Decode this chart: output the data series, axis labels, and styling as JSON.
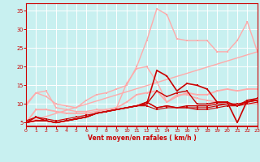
{
  "bg_color": "#c8f0f0",
  "grid_color": "#ffffff",
  "xlabel": "Vent moyen/en rafales ( km/h )",
  "xlim": [
    0,
    23
  ],
  "ylim": [
    4,
    37
  ],
  "yticks": [
    5,
    10,
    15,
    20,
    25,
    30,
    35
  ],
  "xticks": [
    0,
    1,
    2,
    3,
    4,
    5,
    6,
    7,
    8,
    9,
    10,
    11,
    12,
    13,
    14,
    15,
    16,
    17,
    18,
    19,
    20,
    21,
    22,
    23
  ],
  "series": [
    {
      "x": [
        0,
        1,
        2,
        3,
        4,
        5,
        6,
        7,
        8,
        9,
        10,
        11,
        12,
        13,
        14,
        15,
        16,
        17,
        18,
        19,
        20,
        21,
        22,
        23
      ],
      "y": [
        10.0,
        13.0,
        12.0,
        10.0,
        9.5,
        9.0,
        11.0,
        12.5,
        13.0,
        14.0,
        15.0,
        20.0,
        27.0,
        35.5,
        34.0,
        27.5,
        27.0,
        27.0,
        27.0,
        24.0,
        24.0,
        27.0,
        32.0,
        24.0
      ],
      "color": "#ffaaaa",
      "lw": 1.0,
      "ms": 2.0
    },
    {
      "x": [
        0,
        1,
        2,
        3,
        4,
        5,
        6,
        7,
        8,
        9,
        10,
        11,
        12,
        13,
        14,
        15,
        16,
        17,
        18,
        19,
        20,
        21,
        22,
        23
      ],
      "y": [
        9.5,
        13.0,
        13.5,
        9.0,
        8.5,
        8.0,
        8.0,
        8.5,
        8.5,
        9.0,
        15.5,
        19.5,
        20.0,
        16.0,
        10.5,
        12.5,
        12.5,
        11.5,
        11.0,
        10.5,
        10.5,
        9.5,
        10.0,
        10.0
      ],
      "color": "#ffaaaa",
      "lw": 1.0,
      "ms": 2.0
    },
    {
      "x": [
        0,
        1,
        2,
        3,
        4,
        5,
        6,
        7,
        8,
        9,
        10,
        11,
        12,
        13,
        14,
        15,
        16,
        17,
        18,
        19,
        20,
        21,
        22,
        23
      ],
      "y": [
        5.0,
        8.5,
        8.5,
        8.0,
        7.5,
        7.5,
        7.5,
        8.0,
        8.5,
        9.0,
        10.5,
        12.5,
        13.0,
        13.5,
        10.5,
        12.0,
        13.0,
        12.5,
        12.5,
        13.5,
        14.0,
        13.5,
        14.0,
        14.0
      ],
      "color": "#ffaaaa",
      "lw": 1.3,
      "ms": 2.0
    },
    {
      "x": [
        0,
        23
      ],
      "y": [
        5.0,
        24.0
      ],
      "color": "#ffaaaa",
      "lw": 1.0,
      "ms": 0
    },
    {
      "x": [
        0,
        1,
        2,
        3,
        4,
        5,
        6,
        7,
        8,
        9,
        10,
        11,
        12,
        13,
        14,
        15,
        16,
        17,
        18,
        19,
        20,
        21,
        22,
        23
      ],
      "y": [
        5.0,
        6.5,
        5.5,
        5.0,
        5.5,
        6.0,
        6.5,
        7.5,
        8.0,
        8.5,
        9.0,
        9.5,
        10.0,
        19.0,
        17.5,
        13.5,
        15.5,
        15.0,
        14.0,
        10.5,
        10.5,
        5.0,
        11.0,
        11.0
      ],
      "color": "#cc0000",
      "lw": 1.2,
      "ms": 2.0
    },
    {
      "x": [
        0,
        1,
        2,
        3,
        4,
        5,
        6,
        7,
        8,
        9,
        10,
        11,
        12,
        13,
        14,
        15,
        16,
        17,
        18,
        19,
        20,
        21,
        22,
        23
      ],
      "y": [
        5.0,
        5.5,
        5.5,
        5.0,
        5.5,
        6.0,
        6.5,
        7.5,
        8.0,
        8.5,
        9.0,
        9.5,
        10.0,
        13.5,
        12.0,
        13.0,
        13.5,
        10.0,
        10.0,
        10.5,
        10.5,
        9.5,
        11.0,
        11.5
      ],
      "color": "#cc0000",
      "lw": 1.0,
      "ms": 2.0
    },
    {
      "x": [
        0,
        1,
        2,
        3,
        4,
        5,
        6,
        7,
        8,
        9,
        10,
        11,
        12,
        13,
        14,
        15,
        16,
        17,
        18,
        19,
        20,
        21,
        22,
        23
      ],
      "y": [
        5.0,
        5.5,
        5.5,
        5.0,
        5.5,
        6.0,
        6.5,
        7.5,
        8.0,
        8.5,
        9.0,
        9.5,
        10.5,
        9.0,
        9.5,
        9.0,
        9.5,
        9.5,
        9.5,
        10.0,
        10.0,
        10.0,
        10.5,
        11.0
      ],
      "color": "#cc0000",
      "lw": 1.0,
      "ms": 2.0
    },
    {
      "x": [
        0,
        1,
        2,
        3,
        4,
        5,
        6,
        7,
        8,
        9,
        10,
        11,
        12,
        13,
        14,
        15,
        16,
        17,
        18,
        19,
        20,
        21,
        22,
        23
      ],
      "y": [
        5.0,
        5.5,
        5.5,
        5.0,
        5.5,
        6.0,
        6.5,
        7.5,
        8.0,
        8.5,
        9.0,
        9.5,
        10.5,
        9.0,
        9.5,
        9.0,
        9.0,
        9.0,
        9.0,
        9.5,
        10.0,
        9.5,
        10.5,
        11.0
      ],
      "color": "#cc0000",
      "lw": 0.8,
      "ms": 1.5
    },
    {
      "x": [
        0,
        1,
        2,
        3,
        4,
        5,
        6,
        7,
        8,
        9,
        10,
        11,
        12,
        13,
        14,
        15,
        16,
        17,
        18,
        19,
        20,
        21,
        22,
        23
      ],
      "y": [
        5.5,
        6.5,
        6.0,
        5.5,
        6.0,
        6.5,
        7.0,
        7.5,
        8.0,
        8.5,
        9.0,
        9.5,
        9.5,
        8.5,
        9.0,
        9.0,
        9.0,
        8.5,
        8.5,
        9.0,
        9.5,
        9.5,
        10.0,
        10.5
      ],
      "color": "#cc0000",
      "lw": 0.8,
      "ms": 1.5
    }
  ]
}
